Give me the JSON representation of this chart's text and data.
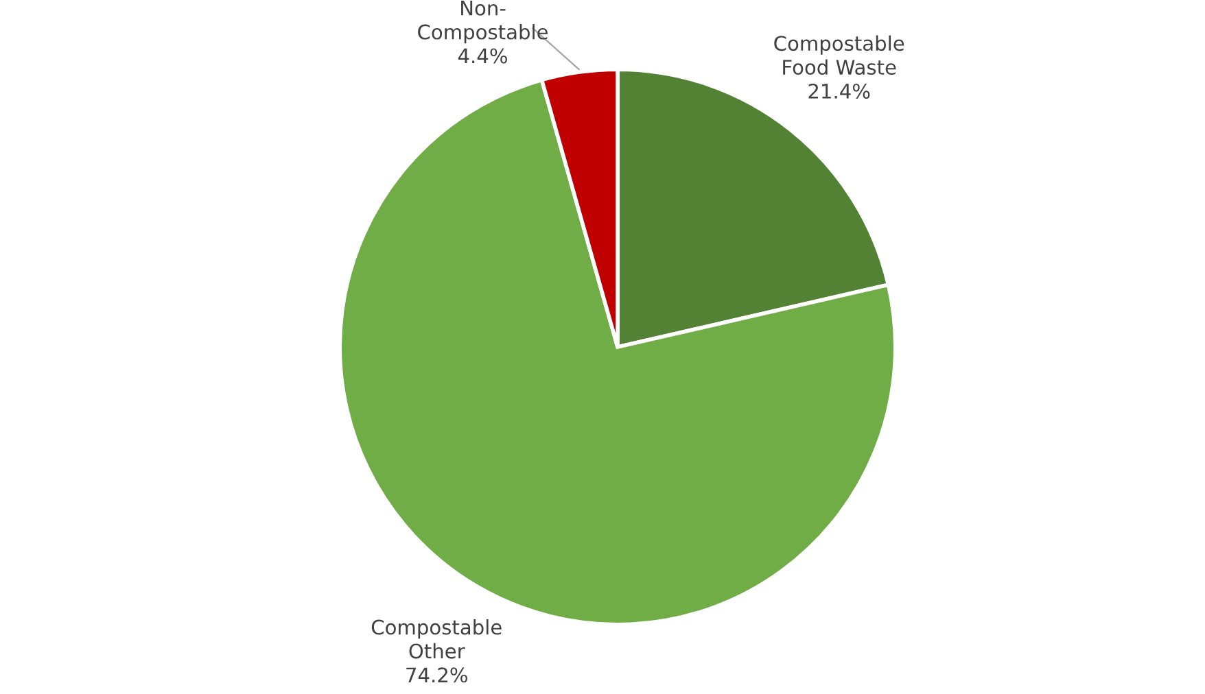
{
  "chart_data": {
    "type": "pie",
    "categories": [
      "Compostable\nFood Waste",
      "Compostable\nOther",
      "Non-\nCompostable"
    ],
    "values": [
      21.4,
      74.2,
      4.4
    ],
    "colors": [
      "#548235",
      "#70ad47",
      "#c00000"
    ],
    "value_labels": [
      "21.4%",
      "74.2%",
      "4.4%"
    ],
    "legend": false
  }
}
